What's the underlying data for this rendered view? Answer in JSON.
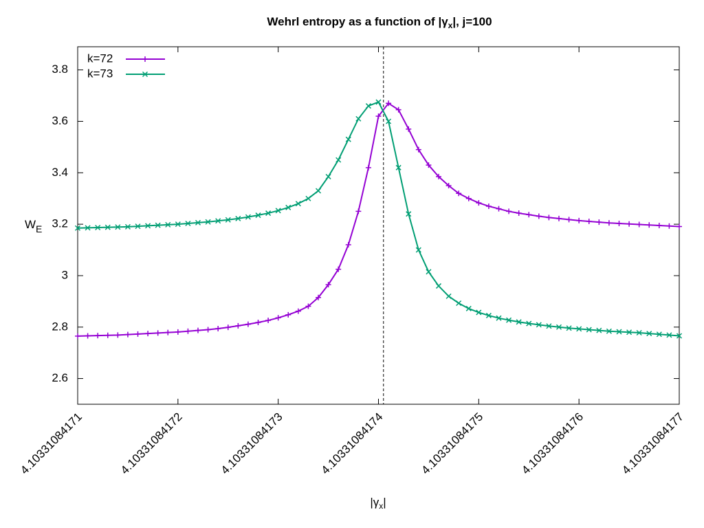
{
  "chart_data": {
    "type": "line",
    "title": {
      "text": "Wehrl entropy as a function of |γ",
      "subscript": "x",
      "suffix": "|,  j=100"
    },
    "xlabel": {
      "text": "|γ",
      "subscript": "x",
      "suffix": "|"
    },
    "ylabel": {
      "text": "W",
      "subscript": "E"
    },
    "x": [
      4.10331084171,
      4.103310841711,
      4.103310841712,
      4.103310841713,
      4.103310841714,
      4.103310841715,
      4.103310841716,
      4.103310841717,
      4.103310841718,
      4.103310841719,
      4.10331084172,
      4.103310841721,
      4.103310841722,
      4.103310841723,
      4.103310841724,
      4.103310841725,
      4.103310841726,
      4.103310841727,
      4.103310841728,
      4.103310841729,
      4.10331084173,
      4.103310841731,
      4.103310841732,
      4.103310841733,
      4.103310841734,
      4.103310841735,
      4.103310841736,
      4.103310841737,
      4.103310841738,
      4.103310841739,
      4.10331084174,
      4.103310841741,
      4.103310841742,
      4.103310841743,
      4.103310841744,
      4.103310841745,
      4.103310841746,
      4.103310841747,
      4.103310841748,
      4.103310841749,
      4.10331084175,
      4.103310841751,
      4.103310841752,
      4.103310841753,
      4.103310841754,
      4.103310841755,
      4.103310841756,
      4.103310841757,
      4.103310841758,
      4.103310841759,
      4.10331084176,
      4.103310841761,
      4.103310841762,
      4.103310841763,
      4.103310841764,
      4.103310841765,
      4.103310841766,
      4.103310841767,
      4.103310841768,
      4.103310841769,
      4.10331084177
    ],
    "series": [
      {
        "name": "k=72",
        "color": "#9400d3",
        "marker": "plus",
        "values": [
          2.765,
          2.766,
          2.767,
          2.768,
          2.769,
          2.771,
          2.773,
          2.775,
          2.777,
          2.779,
          2.781,
          2.784,
          2.787,
          2.79,
          2.794,
          2.799,
          2.805,
          2.811,
          2.818,
          2.826,
          2.836,
          2.848,
          2.862,
          2.881,
          2.915,
          2.965,
          3.025,
          3.12,
          3.25,
          3.42,
          3.62,
          3.67,
          3.645,
          3.57,
          3.49,
          3.43,
          3.385,
          3.35,
          3.32,
          3.3,
          3.283,
          3.27,
          3.26,
          3.25,
          3.243,
          3.237,
          3.231,
          3.226,
          3.222,
          3.218,
          3.214,
          3.211,
          3.208,
          3.205,
          3.203,
          3.201,
          3.199,
          3.197,
          3.195,
          3.193,
          3.191
        ]
      },
      {
        "name": "k=73",
        "color": "#009e73",
        "marker": "cross",
        "values": [
          3.185,
          3.186,
          3.187,
          3.188,
          3.189,
          3.19,
          3.192,
          3.194,
          3.196,
          3.198,
          3.2,
          3.203,
          3.206,
          3.209,
          3.213,
          3.217,
          3.222,
          3.228,
          3.235,
          3.243,
          3.253,
          3.265,
          3.28,
          3.3,
          3.33,
          3.385,
          3.45,
          3.53,
          3.61,
          3.66,
          3.675,
          3.6,
          3.42,
          3.24,
          3.1,
          3.015,
          2.96,
          2.92,
          2.893,
          2.872,
          2.857,
          2.845,
          2.835,
          2.827,
          2.82,
          2.814,
          2.809,
          2.804,
          2.8,
          2.796,
          2.793,
          2.79,
          2.787,
          2.784,
          2.782,
          2.78,
          2.778,
          2.775,
          2.772,
          2.769,
          2.766
        ]
      }
    ],
    "vline": 4.1033108417405,
    "xlim": [
      4.10331084171,
      4.10331084177
    ],
    "xticks": [
      4.10331084171,
      4.10331084172,
      4.10331084173,
      4.10331084174,
      4.10331084175,
      4.10331084176,
      4.10331084177
    ],
    "ylim": [
      2.5,
      3.89
    ],
    "yticks": [
      2.6,
      2.8,
      3,
      3.2,
      3.4,
      3.6,
      3.8
    ],
    "grid": false,
    "legend": "top-left"
  }
}
